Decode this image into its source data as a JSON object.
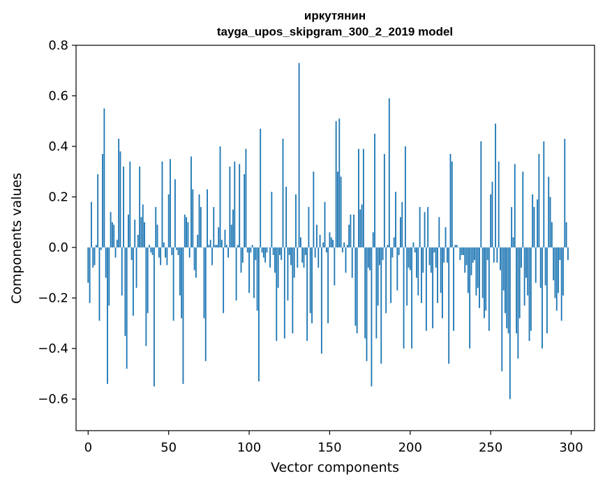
{
  "chart_data": {
    "type": "bar",
    "title": "иркутянин",
    "subtitle": "tayga_upos_skipgram_300_2_2019 model",
    "xlabel": "Vector components",
    "ylabel": "Components values",
    "xlim": [
      -7.5,
      314.5
    ],
    "ylim": [
      -0.725,
      0.8
    ],
    "xticks": [
      0,
      50,
      100,
      150,
      200,
      250,
      300
    ],
    "yticks": [
      -0.6,
      -0.4,
      -0.2,
      0.0,
      0.2,
      0.4,
      0.6,
      0.8
    ],
    "xtick_labels": [
      "0",
      "50",
      "100",
      "150",
      "200",
      "250",
      "300"
    ],
    "ytick_labels": [
      "−0.6",
      "−0.4",
      "−0.2",
      "0.0",
      "0.2",
      "0.4",
      "0.6",
      "0.8"
    ],
    "bar_color": "#1f77b4",
    "values": [
      -0.14,
      -0.22,
      0.18,
      -0.08,
      -0.07,
      0.01,
      0.29,
      -0.29,
      -0.01,
      0.37,
      0.55,
      -0.12,
      -0.54,
      -0.23,
      0.14,
      0.1,
      0.09,
      -0.04,
      0.03,
      0.43,
      0.38,
      -0.19,
      0.32,
      -0.35,
      -0.48,
      0.13,
      0.34,
      -0.05,
      -0.27,
      0.11,
      -0.16,
      0.05,
      0.32,
      0.12,
      0.17,
      0.1,
      -0.39,
      -0.26,
      0.01,
      -0.02,
      -0.03,
      -0.55,
      0.16,
      0.09,
      -0.04,
      -0.07,
      0.34,
      0.02,
      -0.04,
      -0.07,
      0.21,
      0.35,
      -0.03,
      -0.29,
      0.27,
      -0.01,
      -0.03,
      -0.19,
      -0.28,
      -0.54,
      0.13,
      0.12,
      0.1,
      -0.04,
      0.36,
      0.23,
      -0.09,
      -0.12,
      0.05,
      0.21,
      0.16,
      0.0,
      -0.28,
      -0.45,
      0.23,
      0.01,
      0.03,
      -0.07,
      0.16,
      0.01,
      0.01,
      0.08,
      0.4,
      0.03,
      -0.26,
      0.07,
      0.01,
      -0.04,
      0.32,
      0.09,
      0.15,
      0.34,
      -0.21,
      0.01,
      0.33,
      -0.1,
      -0.06,
      0.29,
      0.39,
      -0.02,
      -0.18,
      -0.02,
      0.01,
      -0.2,
      -0.05,
      -0.25,
      -0.53,
      0.47,
      -0.02,
      -0.04,
      -0.06,
      -0.02,
      0.0,
      -0.08,
      0.22,
      -0.03,
      -0.1,
      -0.37,
      -0.16,
      -0.03,
      -0.05,
      0.43,
      -0.36,
      0.24,
      -0.21,
      -0.03,
      -0.07,
      -0.34,
      -0.12,
      0.21,
      -0.08,
      0.73,
      0.04,
      -0.06,
      -0.08,
      -0.03,
      -0.37,
      0.16,
      -0.26,
      -0.3,
      0.3,
      -0.04,
      0.09,
      -0.08,
      0.05,
      -0.42,
      0.02,
      0.18,
      -0.02,
      -0.3,
      0.06,
      0.04,
      0.03,
      -0.15,
      0.5,
      0.3,
      0.51,
      0.28,
      -0.02,
      0.02,
      -0.1,
      0.01,
      0.09,
      0.13,
      -0.12,
      0.13,
      -0.31,
      -0.34,
      0.39,
      0.15,
      0.17,
      0.39,
      -0.36,
      -0.45,
      -0.08,
      -0.09,
      -0.55,
      0.06,
      0.45,
      -0.36,
      -0.23,
      -0.07,
      -0.46,
      -0.05,
      0.37,
      -0.26,
      0.01,
      0.59,
      -0.22,
      -0.04,
      0.04,
      0.22,
      -0.17,
      -0.03,
      0.12,
      0.18,
      -0.4,
      0.4,
      -0.23,
      -0.08,
      -0.09,
      -0.4,
      0.02,
      -0.02,
      -0.12,
      -0.19,
      0.16,
      -0.22,
      -0.1,
      0.14,
      -0.33,
      0.16,
      -0.07,
      -0.1,
      -0.32,
      -0.02,
      -0.08,
      -0.22,
      0.12,
      -0.18,
      -0.28,
      -0.06,
      0.08,
      -0.06,
      -0.46,
      0.37,
      0.34,
      -0.33,
      0.01,
      0.01,
      0.0,
      -0.05,
      -0.03,
      -0.03,
      -0.1,
      -0.07,
      -0.18,
      -0.4,
      -0.11,
      -0.06,
      -0.05,
      -0.19,
      -0.16,
      -0.24,
      0.42,
      -0.2,
      -0.28,
      -0.25,
      -0.05,
      -0.33,
      0.21,
      0.26,
      -0.06,
      0.49,
      -0.06,
      0.34,
      -0.09,
      -0.49,
      -0.17,
      -0.26,
      -0.32,
      -0.34,
      -0.6,
      0.16,
      0.04,
      0.33,
      -0.34,
      -0.44,
      -0.28,
      -0.08,
      0.3,
      -0.23,
      -0.12,
      -0.19,
      -0.37,
      -0.33,
      0.21,
      0.16,
      -0.14,
      0.19,
      0.37,
      -0.16,
      -0.4,
      0.42,
      -0.15,
      -0.34,
      0.28,
      0.2,
      0.1,
      -0.13,
      -0.2,
      -0.25,
      -0.18,
      -0.05,
      -0.29,
      -0.19,
      0.43,
      0.1,
      -0.05
    ]
  }
}
